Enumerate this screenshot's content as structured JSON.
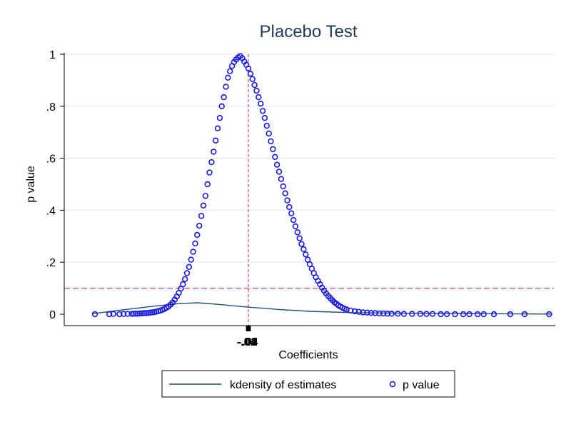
{
  "chart_data": {
    "type": "scatter",
    "title": "Placebo Test",
    "xlabel": "Coefficients",
    "ylabel": "p value",
    "ylim": [
      0,
      1
    ],
    "yticks": [
      {
        "value": 0,
        "label": "0"
      },
      {
        "value": 0.2,
        "label": ".2"
      },
      {
        "value": 0.4,
        "label": ".4"
      },
      {
        "value": 0.6,
        "label": ".6"
      },
      {
        "value": 0.8,
        "label": ".8"
      },
      {
        "value": 1,
        "label": "1"
      }
    ],
    "xlim": [
      -0.09,
      0.15
    ],
    "xtick_labels": [
      "-.04",
      "-.02",
      "0",
      ".02",
      ".04"
    ],
    "xtick_center": 0,
    "reference_lines": {
      "vertical_x": 0,
      "horizontal_y": 0.1,
      "color": "#c0294a"
    },
    "grid": true,
    "legend": {
      "placement": "bottom",
      "entries": [
        "kdensity of estimates",
        "p value"
      ]
    },
    "colors": {
      "points": "#1a1ae6",
      "density": "#1f4e79",
      "title": "#1f3a5a",
      "grid": "#e6ebf0"
    },
    "series": [
      {
        "name": "kdensity of estimates",
        "kind": "line",
        "x": [
          -0.076,
          -0.06,
          -0.045,
          -0.035,
          -0.025,
          -0.015,
          0,
          0.015,
          0.03,
          0.05,
          0.07,
          0.09,
          0.11,
          0.13,
          0.148
        ],
        "y": [
          0.002,
          0.018,
          0.032,
          0.04,
          0.044,
          0.038,
          0.027,
          0.018,
          0.011,
          0.006,
          0.004,
          0.003,
          0.002,
          0.001,
          0.0005
        ]
      },
      {
        "name": "p value",
        "kind": "points",
        "x": [
          -0.075,
          -0.068,
          -0.066,
          -0.063,
          -0.061,
          -0.059,
          -0.057,
          -0.056,
          -0.055,
          -0.054,
          -0.053,
          -0.052,
          -0.051,
          -0.05,
          -0.049,
          -0.048,
          -0.047,
          -0.046,
          -0.045,
          -0.044,
          -0.043,
          -0.042,
          -0.041,
          -0.04,
          -0.039,
          -0.038,
          -0.037,
          -0.036,
          -0.035,
          -0.034,
          -0.033,
          -0.032,
          -0.031,
          -0.03,
          -0.029,
          -0.028,
          -0.027,
          -0.026,
          -0.025,
          -0.024,
          -0.023,
          -0.022,
          -0.021,
          -0.02,
          -0.019,
          -0.018,
          -0.017,
          -0.016,
          -0.015,
          -0.014,
          -0.013,
          -0.012,
          -0.011,
          -0.01,
          -0.009,
          -0.008,
          -0.007,
          -0.006,
          -0.005,
          -0.004,
          -0.003,
          -0.002,
          -0.001,
          0.0,
          0.001,
          0.002,
          0.003,
          0.004,
          0.005,
          0.006,
          0.007,
          0.008,
          0.009,
          0.01,
          0.011,
          0.012,
          0.013,
          0.014,
          0.015,
          0.016,
          0.017,
          0.018,
          0.019,
          0.02,
          0.021,
          0.022,
          0.023,
          0.024,
          0.025,
          0.026,
          0.027,
          0.028,
          0.029,
          0.03,
          0.031,
          0.032,
          0.033,
          0.034,
          0.035,
          0.036,
          0.037,
          0.038,
          0.039,
          0.04,
          0.041,
          0.042,
          0.043,
          0.044,
          0.045,
          0.046,
          0.047,
          0.048,
          0.05,
          0.052,
          0.054,
          0.056,
          0.058,
          0.06,
          0.062,
          0.064,
          0.066,
          0.068,
          0.07,
          0.073,
          0.076,
          0.08,
          0.084,
          0.087,
          0.09,
          0.094,
          0.097,
          0.101,
          0.105,
          0.108,
          0.112,
          0.115,
          0.12,
          0.128,
          0.135,
          0.147
        ],
        "y": [
          0.0,
          0.0,
          0.001,
          0.0,
          0.001,
          0.001,
          0.001,
          0.002,
          0.002,
          0.002,
          0.003,
          0.003,
          0.004,
          0.004,
          0.005,
          0.006,
          0.007,
          0.008,
          0.01,
          0.012,
          0.014,
          0.017,
          0.02,
          0.025,
          0.03,
          0.037,
          0.045,
          0.056,
          0.068,
          0.082,
          0.098,
          0.115,
          0.135,
          0.158,
          0.182,
          0.21,
          0.24,
          0.272,
          0.305,
          0.34,
          0.378,
          0.418,
          0.455,
          0.5,
          0.545,
          0.585,
          0.625,
          0.668,
          0.715,
          0.755,
          0.8,
          0.835,
          0.875,
          0.91,
          0.935,
          0.955,
          0.97,
          0.98,
          0.988,
          0.993,
          0.985,
          0.972,
          0.96,
          0.945,
          0.925,
          0.905,
          0.882,
          0.86,
          0.835,
          0.81,
          0.782,
          0.755,
          0.725,
          0.695,
          0.665,
          0.635,
          0.605,
          0.575,
          0.548,
          0.52,
          0.492,
          0.465,
          0.438,
          0.412,
          0.388,
          0.362,
          0.338,
          0.315,
          0.292,
          0.27,
          0.25,
          0.23,
          0.21,
          0.192,
          0.175,
          0.158,
          0.142,
          0.128,
          0.115,
          0.102,
          0.09,
          0.08,
          0.07,
          0.062,
          0.054,
          0.046,
          0.04,
          0.034,
          0.029,
          0.025,
          0.021,
          0.018,
          0.014,
          0.011,
          0.009,
          0.007,
          0.006,
          0.005,
          0.004,
          0.003,
          0.003,
          0.002,
          0.002,
          0.002,
          0.001,
          0.001,
          0.001,
          0.001,
          0.001,
          0.0,
          0.0,
          0.0,
          0.0,
          0.0,
          0.0,
          0.0,
          0.0,
          0.0,
          0.0,
          0.0
        ]
      }
    ]
  }
}
